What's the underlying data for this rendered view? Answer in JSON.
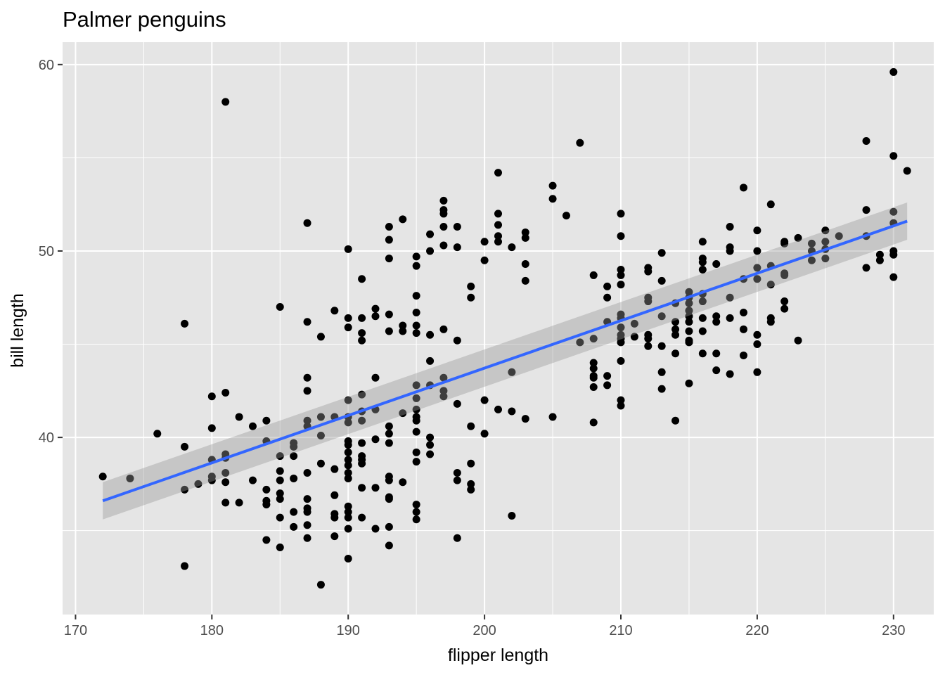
{
  "chart_data": {
    "type": "scatter",
    "title": "Palmer penguins",
    "xlabel": "flipper length",
    "ylabel": "bill length",
    "xlim": [
      169.05,
      232.95
    ],
    "ylim": [
      30.5,
      61.2
    ],
    "x_ticks": [
      170,
      180,
      190,
      200,
      210,
      220,
      230
    ],
    "y_ticks": [
      40,
      50,
      60
    ],
    "grid": true,
    "colors": {
      "panel": "#e5e5e5",
      "grid": "#ffffff",
      "points": "#000000",
      "line": "#3366ff",
      "ribbon": "#999999"
    },
    "trend_line": {
      "x": [
        172,
        231
      ],
      "y": [
        36.6,
        51.6
      ],
      "ci_lower": [
        35.6,
        50.6
      ],
      "ci_upper": [
        37.6,
        52.6
      ]
    },
    "points": [
      [
        172,
        37.9
      ],
      [
        174,
        37.8
      ],
      [
        176,
        40.2
      ],
      [
        178,
        46.1
      ],
      [
        178,
        39.5
      ],
      [
        178,
        37.2
      ],
      [
        178,
        33.1
      ],
      [
        179,
        37.5
      ],
      [
        180,
        42.2
      ],
      [
        180,
        40.5
      ],
      [
        180,
        38.8
      ],
      [
        180,
        37.9
      ],
      [
        180,
        37.7
      ],
      [
        181,
        58.0
      ],
      [
        181,
        42.4
      ],
      [
        181,
        39.1
      ],
      [
        181,
        38.9
      ],
      [
        181,
        38.1
      ],
      [
        181,
        37.6
      ],
      [
        181,
        36.5
      ],
      [
        182,
        41.1
      ],
      [
        182,
        36.5
      ],
      [
        183,
        40.6
      ],
      [
        183,
        37.7
      ],
      [
        184,
        40.9
      ],
      [
        184,
        39.8
      ],
      [
        184,
        36.6
      ],
      [
        184,
        36.4
      ],
      [
        184,
        37.2
      ],
      [
        184,
        34.5
      ],
      [
        185,
        47.0
      ],
      [
        185,
        39.0
      ],
      [
        185,
        38.2
      ],
      [
        185,
        37.7
      ],
      [
        185,
        37.0
      ],
      [
        185,
        36.7
      ],
      [
        185,
        35.7
      ],
      [
        185,
        34.1
      ],
      [
        186,
        39.7
      ],
      [
        186,
        39.5
      ],
      [
        186,
        39.0
      ],
      [
        186,
        37.8
      ],
      [
        186,
        36.0
      ],
      [
        186,
        35.2
      ],
      [
        187,
        51.5
      ],
      [
        187,
        46.2
      ],
      [
        187,
        43.2
      ],
      [
        187,
        42.5
      ],
      [
        187,
        40.9
      ],
      [
        187,
        40.6
      ],
      [
        187,
        38.1
      ],
      [
        187,
        36.7
      ],
      [
        187,
        36.2
      ],
      [
        187,
        36.0
      ],
      [
        187,
        35.3
      ],
      [
        187,
        34.6
      ],
      [
        188,
        45.4
      ],
      [
        188,
        41.1
      ],
      [
        188,
        40.1
      ],
      [
        188,
        38.6
      ],
      [
        188,
        32.1
      ],
      [
        189,
        46.8
      ],
      [
        189,
        41.1
      ],
      [
        189,
        38.3
      ],
      [
        189,
        36.9
      ],
      [
        189,
        35.9
      ],
      [
        189,
        35.7
      ],
      [
        189,
        34.7
      ],
      [
        190,
        50.1
      ],
      [
        190,
        46.4
      ],
      [
        190,
        45.9
      ],
      [
        190,
        42.0
      ],
      [
        190,
        41.1
      ],
      [
        190,
        40.8
      ],
      [
        190,
        39.8
      ],
      [
        190,
        39.6
      ],
      [
        190,
        39.2
      ],
      [
        190,
        38.8
      ],
      [
        190,
        38.5
      ],
      [
        190,
        38.1
      ],
      [
        190,
        37.8
      ],
      [
        190,
        36.3
      ],
      [
        190,
        36.0
      ],
      [
        190,
        35.7
      ],
      [
        190,
        35.1
      ],
      [
        190,
        33.5
      ],
      [
        191,
        48.5
      ],
      [
        191,
        46.4
      ],
      [
        191,
        45.6
      ],
      [
        191,
        45.2
      ],
      [
        191,
        42.3
      ],
      [
        191,
        41.4
      ],
      [
        191,
        40.9
      ],
      [
        191,
        39.7
      ],
      [
        191,
        39.0
      ],
      [
        191,
        38.8
      ],
      [
        191,
        38.6
      ],
      [
        191,
        37.3
      ],
      [
        191,
        35.7
      ],
      [
        192,
        46.9
      ],
      [
        192,
        46.5
      ],
      [
        192,
        43.2
      ],
      [
        192,
        41.5
      ],
      [
        192,
        39.9
      ],
      [
        192,
        37.3
      ],
      [
        192,
        35.1
      ],
      [
        193,
        51.3
      ],
      [
        193,
        50.6
      ],
      [
        193,
        49.6
      ],
      [
        193,
        46.6
      ],
      [
        193,
        45.7
      ],
      [
        193,
        40.6
      ],
      [
        193,
        40.2
      ],
      [
        193,
        39.7
      ],
      [
        193,
        37.9
      ],
      [
        193,
        37.7
      ],
      [
        193,
        36.8
      ],
      [
        193,
        36.7
      ],
      [
        193,
        35.2
      ],
      [
        193,
        34.2
      ],
      [
        194,
        51.7
      ],
      [
        194,
        46.0
      ],
      [
        194,
        45.7
      ],
      [
        194,
        41.3
      ],
      [
        194,
        37.6
      ],
      [
        195,
        49.7
      ],
      [
        195,
        49.2
      ],
      [
        195,
        47.6
      ],
      [
        195,
        46.7
      ],
      [
        195,
        46.0
      ],
      [
        195,
        45.6
      ],
      [
        195,
        42.8
      ],
      [
        195,
        42.1
      ],
      [
        195,
        41.5
      ],
      [
        195,
        41.1
      ],
      [
        195,
        40.9
      ],
      [
        195,
        40.3
      ],
      [
        195,
        39.2
      ],
      [
        195,
        38.7
      ],
      [
        195,
        36.4
      ],
      [
        195,
        36.0
      ],
      [
        195,
        35.6
      ],
      [
        196,
        50.9
      ],
      [
        196,
        50.0
      ],
      [
        196,
        45.5
      ],
      [
        196,
        44.1
      ],
      [
        196,
        42.8
      ],
      [
        196,
        40.0
      ],
      [
        196,
        39.6
      ],
      [
        196,
        39.1
      ],
      [
        197,
        52.7
      ],
      [
        197,
        52.2
      ],
      [
        197,
        52.0
      ],
      [
        197,
        51.3
      ],
      [
        197,
        50.3
      ],
      [
        197,
        45.8
      ],
      [
        197,
        43.2
      ],
      [
        197,
        42.5
      ],
      [
        197,
        42.2
      ],
      [
        198,
        51.3
      ],
      [
        198,
        50.2
      ],
      [
        198,
        45.2
      ],
      [
        198,
        41.8
      ],
      [
        198,
        38.1
      ],
      [
        198,
        37.7
      ],
      [
        198,
        34.6
      ],
      [
        199,
        48.1
      ],
      [
        199,
        47.5
      ],
      [
        199,
        40.6
      ],
      [
        199,
        38.6
      ],
      [
        199,
        37.5
      ],
      [
        199,
        37.2
      ],
      [
        200,
        50.5
      ],
      [
        200,
        49.5
      ],
      [
        200,
        42.0
      ],
      [
        200,
        40.2
      ],
      [
        201,
        54.2
      ],
      [
        201,
        52.0
      ],
      [
        201,
        51.4
      ],
      [
        201,
        50.8
      ],
      [
        201,
        50.5
      ],
      [
        201,
        41.5
      ],
      [
        202,
        50.2
      ],
      [
        202,
        43.5
      ],
      [
        202,
        41.4
      ],
      [
        202,
        35.8
      ],
      [
        203,
        51.0
      ],
      [
        203,
        50.7
      ],
      [
        203,
        49.3
      ],
      [
        203,
        48.4
      ],
      [
        203,
        41.0
      ],
      [
        205,
        53.5
      ],
      [
        205,
        52.8
      ],
      [
        205,
        41.1
      ],
      [
        206,
        51.9
      ],
      [
        207,
        55.8
      ],
      [
        207,
        45.1
      ],
      [
        208,
        48.7
      ],
      [
        208,
        45.3
      ],
      [
        208,
        44.0
      ],
      [
        208,
        43.7
      ],
      [
        208,
        43.3
      ],
      [
        208,
        43.2
      ],
      [
        208,
        42.7
      ],
      [
        208,
        40.8
      ],
      [
        209,
        48.1
      ],
      [
        209,
        47.5
      ],
      [
        209,
        46.2
      ],
      [
        209,
        43.3
      ],
      [
        209,
        42.8
      ],
      [
        210,
        52.0
      ],
      [
        210,
        50.8
      ],
      [
        210,
        49.0
      ],
      [
        210,
        48.7
      ],
      [
        210,
        48.2
      ],
      [
        210,
        46.6
      ],
      [
        210,
        46.4
      ],
      [
        210,
        45.9
      ],
      [
        210,
        45.5
      ],
      [
        210,
        45.3
      ],
      [
        210,
        45.1
      ],
      [
        210,
        44.1
      ],
      [
        210,
        42.0
      ],
      [
        210,
        41.7
      ],
      [
        211,
        46.1
      ],
      [
        211,
        45.4
      ],
      [
        212,
        49.1
      ],
      [
        212,
        48.9
      ],
      [
        212,
        47.5
      ],
      [
        212,
        47.3
      ],
      [
        212,
        45.5
      ],
      [
        212,
        45.3
      ],
      [
        212,
        44.9
      ],
      [
        213,
        49.9
      ],
      [
        213,
        48.4
      ],
      [
        213,
        46.5
      ],
      [
        213,
        44.9
      ],
      [
        213,
        43.5
      ],
      [
        213,
        42.6
      ],
      [
        214,
        47.2
      ],
      [
        214,
        46.2
      ],
      [
        214,
        45.8
      ],
      [
        214,
        45.5
      ],
      [
        214,
        44.5
      ],
      [
        214,
        40.9
      ],
      [
        215,
        47.8
      ],
      [
        215,
        47.5
      ],
      [
        215,
        47.2
      ],
      [
        215,
        46.8
      ],
      [
        215,
        46.5
      ],
      [
        215,
        46.2
      ],
      [
        215,
        45.7
      ],
      [
        215,
        45.2
      ],
      [
        215,
        45.1
      ],
      [
        215,
        42.9
      ],
      [
        216,
        50.5
      ],
      [
        216,
        49.6
      ],
      [
        216,
        49.4
      ],
      [
        216,
        49.0
      ],
      [
        216,
        47.7
      ],
      [
        216,
        47.3
      ],
      [
        216,
        46.4
      ],
      [
        216,
        45.7
      ],
      [
        216,
        44.5
      ],
      [
        217,
        49.3
      ],
      [
        217,
        46.5
      ],
      [
        217,
        46.2
      ],
      [
        217,
        44.5
      ],
      [
        217,
        43.6
      ],
      [
        218,
        51.3
      ],
      [
        218,
        50.2
      ],
      [
        218,
        50.0
      ],
      [
        218,
        47.5
      ],
      [
        218,
        46.4
      ],
      [
        218,
        43.4
      ],
      [
        219,
        53.4
      ],
      [
        219,
        48.5
      ],
      [
        219,
        46.7
      ],
      [
        219,
        45.8
      ],
      [
        219,
        44.4
      ],
      [
        220,
        51.1
      ],
      [
        220,
        50.0
      ],
      [
        220,
        49.1
      ],
      [
        220,
        48.5
      ],
      [
        220,
        45.5
      ],
      [
        220,
        45.0
      ],
      [
        220,
        43.5
      ],
      [
        221,
        52.5
      ],
      [
        221,
        49.2
      ],
      [
        221,
        48.2
      ],
      [
        221,
        46.4
      ],
      [
        221,
        46.2
      ],
      [
        222,
        50.5
      ],
      [
        222,
        50.4
      ],
      [
        222,
        48.8
      ],
      [
        222,
        48.7
      ],
      [
        222,
        47.3
      ],
      [
        222,
        46.9
      ],
      [
        223,
        50.7
      ],
      [
        223,
        45.2
      ],
      [
        224,
        50.4
      ],
      [
        224,
        50.0
      ],
      [
        224,
        49.5
      ],
      [
        225,
        51.1
      ],
      [
        225,
        50.5
      ],
      [
        225,
        50.1
      ],
      [
        225,
        49.6
      ],
      [
        226,
        50.8
      ],
      [
        228,
        55.9
      ],
      [
        228,
        52.2
      ],
      [
        228,
        50.8
      ],
      [
        228,
        49.1
      ],
      [
        229,
        49.8
      ],
      [
        229,
        49.5
      ],
      [
        230,
        59.6
      ],
      [
        230,
        55.1
      ],
      [
        230,
        52.1
      ],
      [
        230,
        51.5
      ],
      [
        230,
        50.0
      ],
      [
        230,
        49.8
      ],
      [
        230,
        48.6
      ],
      [
        231,
        54.3
      ]
    ]
  }
}
